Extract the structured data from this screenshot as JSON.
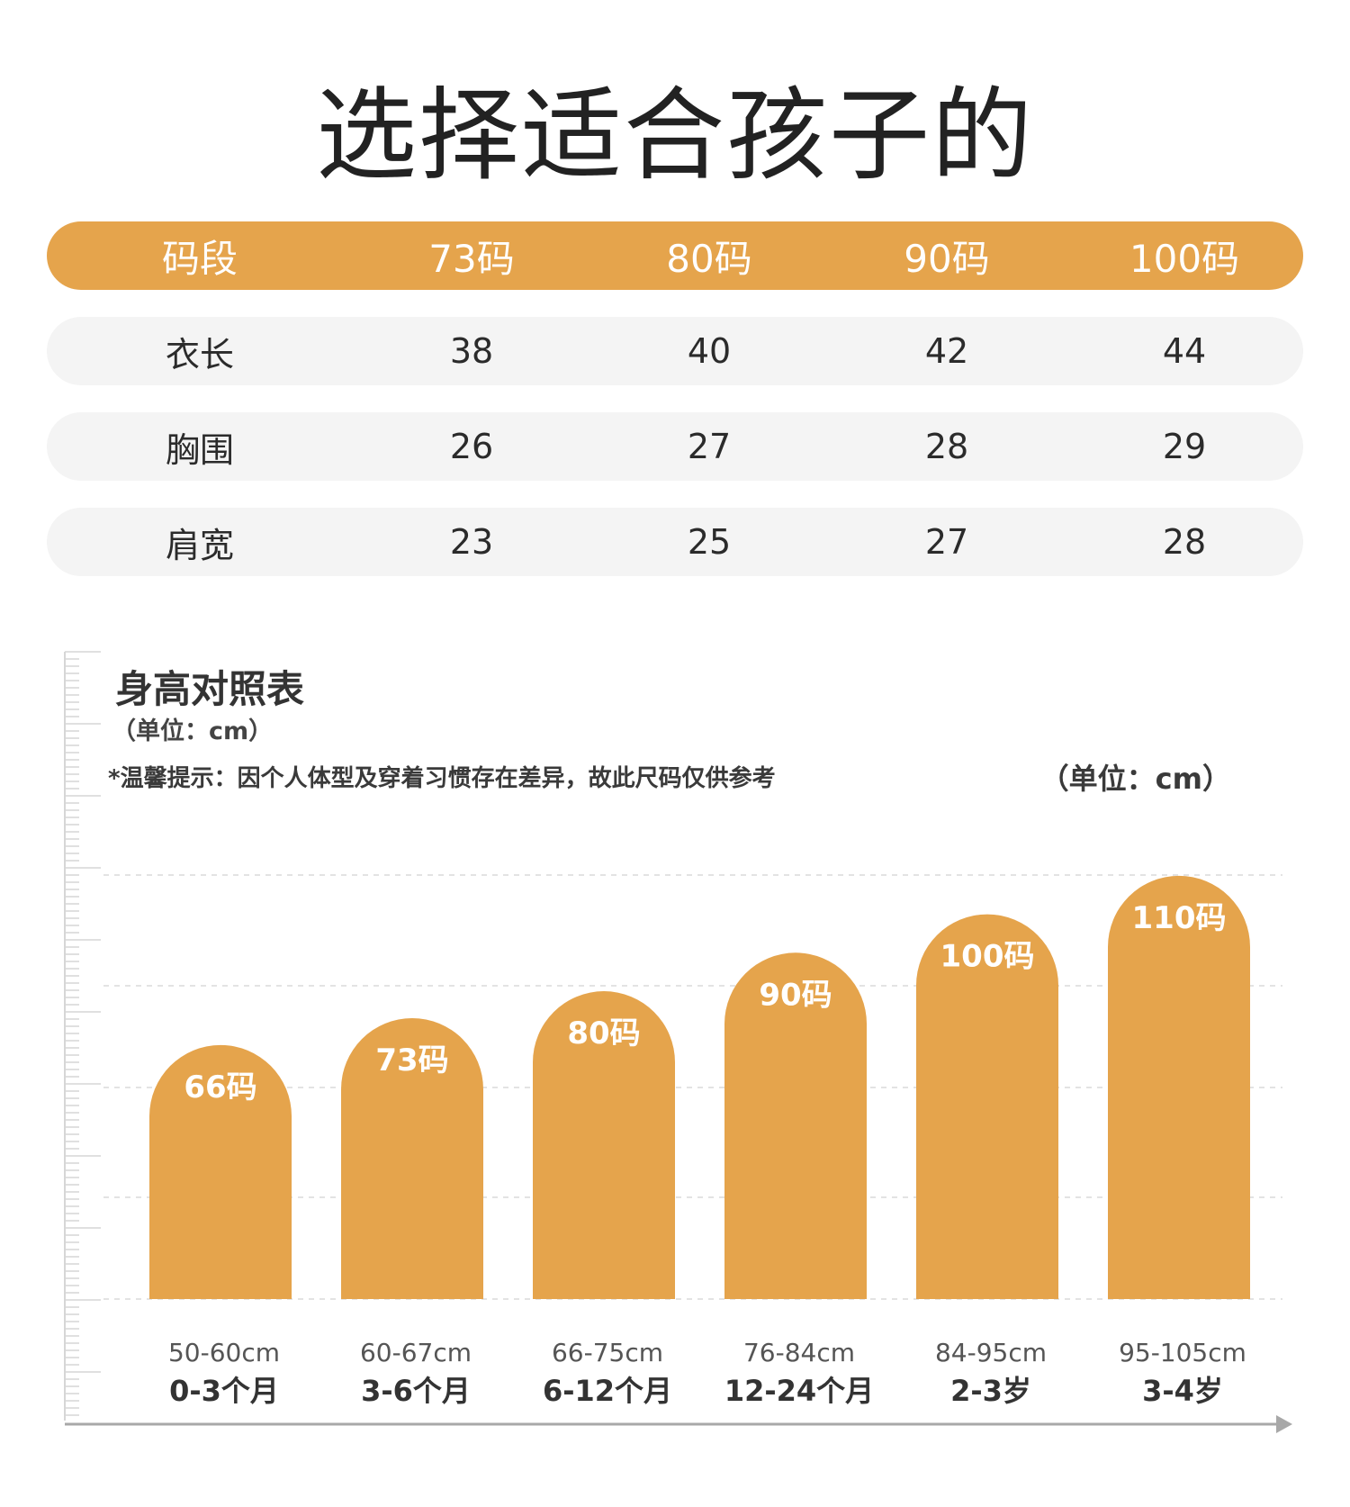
{
  "title": "选择适合孩子的",
  "size_table": {
    "header": [
      "码段",
      "73码",
      "80码",
      "90码",
      "100码"
    ],
    "rows": [
      [
        "衣长",
        "38",
        "40",
        "42",
        "44"
      ],
      [
        "胸围",
        "26",
        "27",
        "28",
        "29"
      ],
      [
        "肩宽",
        "23",
        "25",
        "27",
        "28"
      ]
    ]
  },
  "chart_data": {
    "type": "bar",
    "title": "身高对照表",
    "unit_subtitle": "（单位：cm）",
    "note": "*温馨提示：因个人体型及穿着习惯存在差异，故此尺码仅供参考",
    "unit_right": "（单位：cm）",
    "sizes": [
      "66码",
      "73码",
      "80码",
      "90码",
      "100码",
      "110码"
    ],
    "height_ranges": [
      "50-60cm",
      "60-67cm",
      "66-75cm",
      "76-84cm",
      "84-95cm",
      "95-105cm"
    ],
    "age_ranges": [
      "0-3个月",
      "3-6个月",
      "6-12个月",
      "12-24个月",
      "2-3岁",
      "3-4岁"
    ],
    "values": [
      66,
      73,
      80,
      90,
      100,
      110
    ],
    "grid": true,
    "bar_color": "#e5a44c"
  },
  "colors": {
    "accent": "#e5a44c",
    "row_bg": "#f4f4f4"
  }
}
